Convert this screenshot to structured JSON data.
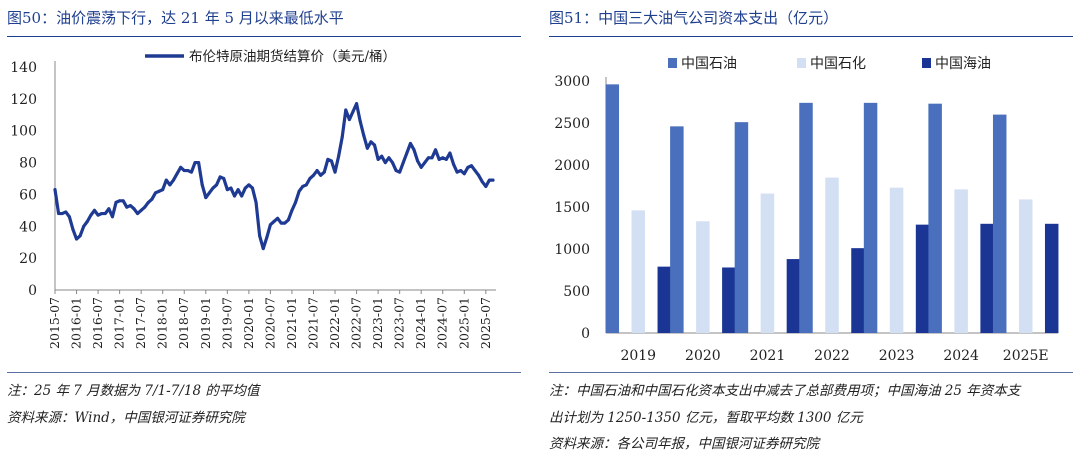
{
  "left": {
    "title": "图50：油价震荡下行，达 21 年 5 月以来最低水平",
    "notes": [
      "注：25 年 7 月数据为 7/1-7/18 的平均值",
      "资料来源：Wind，中国银河证券研究院"
    ]
  },
  "right": {
    "title": "图51：中国三大油气公司资本支出（亿元）",
    "notes": [
      "注：中国石油和中国石化资本支出中减去了总部费用项；中国海油 25 年资本支",
      "出计划为 1250-1350 亿元，暂取平均数 1300 亿元",
      "资料来源：各公司年报，中国银河证券研究院"
    ]
  },
  "colors": {
    "title": "#1f3f8f",
    "line": "#1f3a93",
    "cnpc": "#4a70bd",
    "sinopec": "#d3dff3",
    "cnooc": "#1a3593"
  },
  "chart_data": [
    {
      "type": "line",
      "legend": "布伦特原油期货结算价（美元/桶）",
      "legend_position": "top",
      "ylim": [
        0,
        140
      ],
      "yticks": [
        0,
        20,
        40,
        60,
        80,
        100,
        120,
        140
      ],
      "xlabels": [
        "2015-07",
        "2016-01",
        "2016-07",
        "2017-01",
        "2017-07",
        "2018-01",
        "2018-07",
        "2019-01",
        "2019-07",
        "2020-01",
        "2020-07",
        "2021-01",
        "2021-07",
        "2022-01",
        "2022-07",
        "2023-01",
        "2023-07",
        "2024-01",
        "2024-07",
        "2025-01",
        "2025-07"
      ],
      "x_start": "2015-07",
      "series": [
        {
          "name": "布伦特原油期货结算价（美元/桶）",
          "values": [
            63,
            48,
            48,
            49,
            46,
            38,
            32,
            34,
            40,
            43,
            47,
            50,
            47,
            48,
            48,
            51,
            46,
            55,
            56,
            56,
            52,
            53,
            51,
            48,
            50,
            52,
            55,
            57,
            61,
            62,
            63,
            69,
            66,
            69,
            73,
            77,
            75,
            75,
            74,
            80,
            80,
            66,
            58,
            61,
            64,
            66,
            71,
            70,
            63,
            64,
            59,
            63,
            59,
            64,
            66,
            64,
            55,
            34,
            26,
            33,
            41,
            43,
            45,
            42,
            42,
            44,
            50,
            55,
            62,
            65,
            66,
            70,
            72,
            75,
            72,
            74,
            82,
            81,
            74,
            84,
            96,
            113,
            107,
            112,
            117,
            106,
            97,
            89,
            93,
            91,
            82,
            84,
            80,
            83,
            80,
            75,
            74,
            80,
            86,
            92,
            88,
            81,
            77,
            80,
            83,
            83,
            88,
            82,
            83,
            82,
            86,
            79,
            74,
            75,
            73,
            77,
            78,
            75,
            72,
            68,
            65,
            69,
            69
          ]
        }
      ],
      "grid": false
    },
    {
      "type": "bar",
      "categories": [
        "2019",
        "2020",
        "2021",
        "2022",
        "2023",
        "2024",
        "2025E"
      ],
      "ylim": [
        0,
        3000
      ],
      "yticks": [
        0,
        500,
        1000,
        1500,
        2000,
        2500,
        3000
      ],
      "legend_position": "top",
      "series": [
        {
          "name": "中国石油",
          "values": [
            2960,
            2460,
            2510,
            2740,
            2740,
            2730,
            2600
          ]
        },
        {
          "name": "中国石化",
          "values": [
            1460,
            1330,
            1660,
            1850,
            1730,
            1710,
            1590
          ]
        },
        {
          "name": "中国海油",
          "values": [
            790,
            780,
            880,
            1010,
            1290,
            1300,
            1300
          ]
        }
      ],
      "grid": false
    }
  ]
}
